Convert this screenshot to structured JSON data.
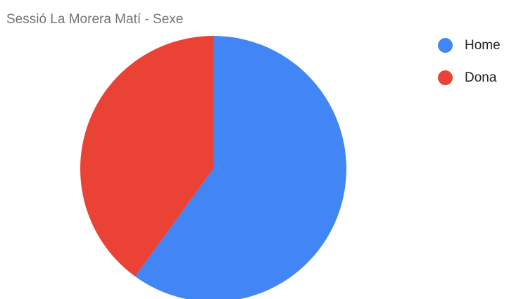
{
  "chart_data": {
    "type": "pie",
    "title": "Sessió La Morera Matí - Sexe",
    "slices": [
      {
        "label": "Home",
        "value": 60,
        "color": "#4285f4"
      },
      {
        "label": "Dona",
        "value": 40,
        "color": "#ea4335"
      }
    ],
    "legend_position": "right"
  }
}
